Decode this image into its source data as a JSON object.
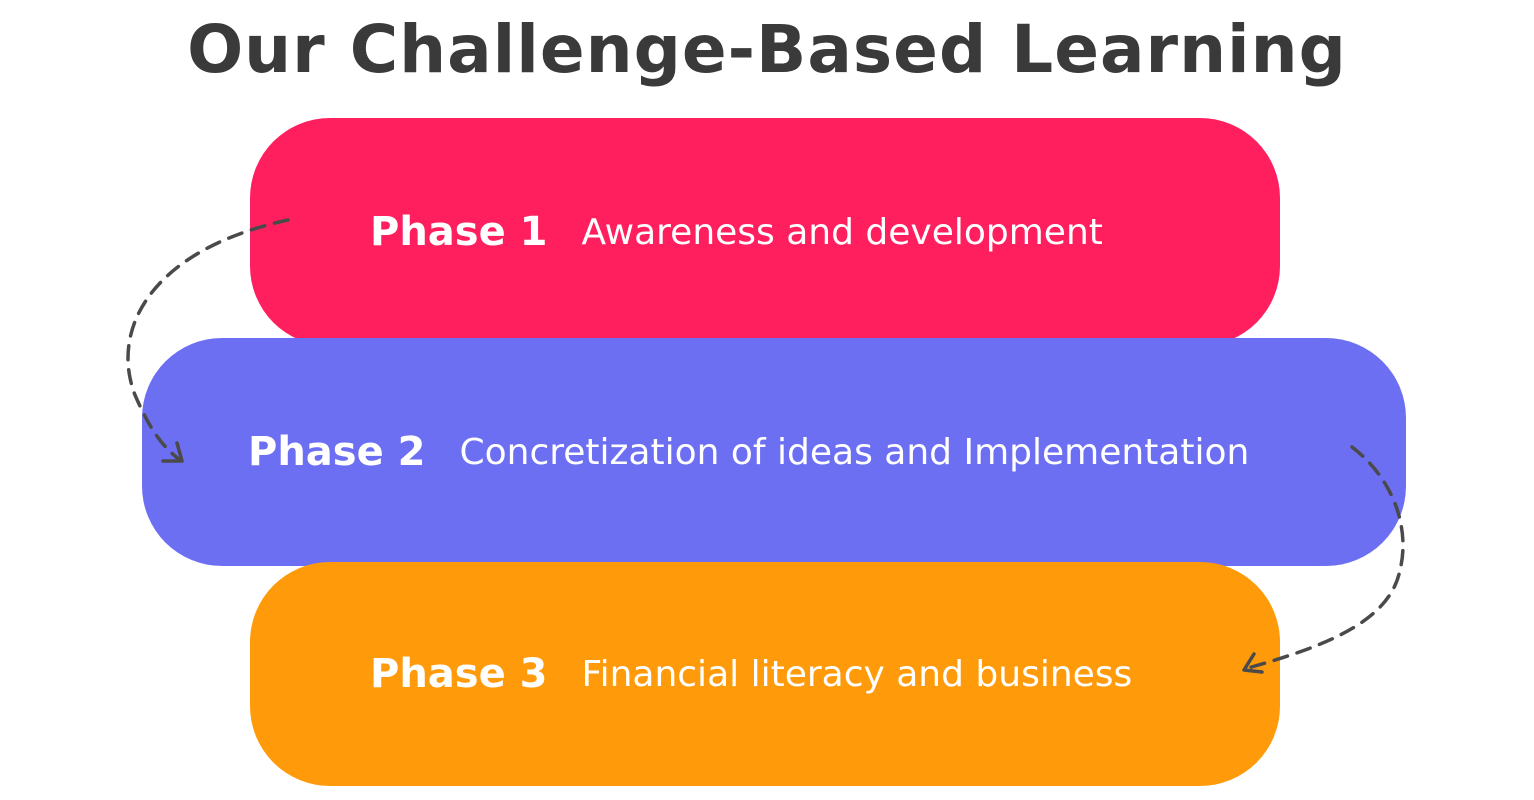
{
  "title": "Our Challenge-Based Learning",
  "phases": [
    {
      "label": "Phase 1",
      "description": "Awareness and development",
      "color": "#ff1f5e"
    },
    {
      "label": "Phase 2",
      "description": "Concretization of ideas and Implementation",
      "color": "#6d6ff3"
    },
    {
      "label": "Phase 3",
      "description": "Financial literacy and business",
      "color": "#ff9a0a"
    }
  ],
  "arrow_color": "#4a4a4a"
}
